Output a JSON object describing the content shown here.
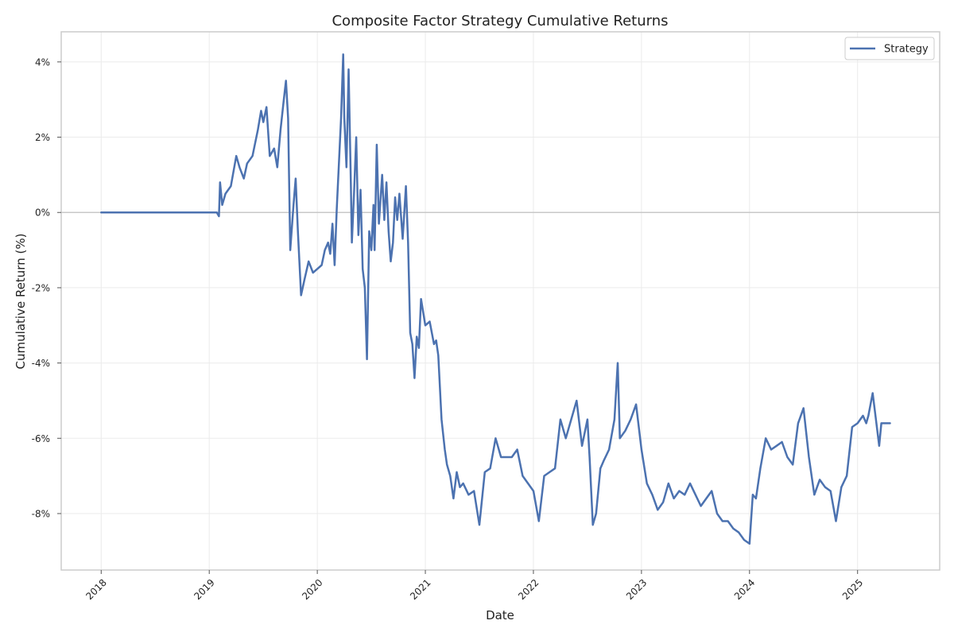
{
  "chart_data": {
    "type": "line",
    "title": "Composite Factor Strategy Cumulative Returns",
    "xlabel": "Date",
    "ylabel": "Cumulative Return (%)",
    "x_ticks": [
      "2018",
      "2019",
      "2020",
      "2021",
      "2022",
      "2023",
      "2024",
      "2025"
    ],
    "y_ticks": [
      "-8%",
      "-6%",
      "-4%",
      "-2%",
      "0%",
      "2%",
      "4%"
    ],
    "xlim": [
      2017.63,
      2025.76
    ],
    "ylim": [
      -9.5,
      4.8
    ],
    "grid": true,
    "legend_position": "top-right",
    "reference_line_y": 0,
    "series": [
      {
        "name": "Strategy",
        "color": "#4c72b0",
        "points": [
          [
            2018.0,
            0.0
          ],
          [
            2018.5,
            0.0
          ],
          [
            2019.0,
            0.0
          ],
          [
            2019.07,
            0.0
          ],
          [
            2019.09,
            -0.1
          ],
          [
            2019.1,
            0.8
          ],
          [
            2019.12,
            0.2
          ],
          [
            2019.15,
            0.5
          ],
          [
            2019.2,
            0.7
          ],
          [
            2019.25,
            1.5
          ],
          [
            2019.28,
            1.2
          ],
          [
            2019.32,
            0.9
          ],
          [
            2019.35,
            1.3
          ],
          [
            2019.4,
            1.5
          ],
          [
            2019.45,
            2.2
          ],
          [
            2019.48,
            2.7
          ],
          [
            2019.5,
            2.4
          ],
          [
            2019.53,
            2.8
          ],
          [
            2019.56,
            1.5
          ],
          [
            2019.6,
            1.7
          ],
          [
            2019.63,
            1.2
          ],
          [
            2019.66,
            2.2
          ],
          [
            2019.69,
            3.0
          ],
          [
            2019.71,
            3.5
          ],
          [
            2019.73,
            2.5
          ],
          [
            2019.75,
            -1.0
          ],
          [
            2019.78,
            0.2
          ],
          [
            2019.8,
            0.9
          ],
          [
            2019.82,
            -0.5
          ],
          [
            2019.85,
            -2.2
          ],
          [
            2019.88,
            -1.8
          ],
          [
            2019.92,
            -1.3
          ],
          [
            2019.96,
            -1.6
          ],
          [
            2020.0,
            -1.5
          ],
          [
            2020.04,
            -1.4
          ],
          [
            2020.07,
            -1.0
          ],
          [
            2020.1,
            -0.8
          ],
          [
            2020.12,
            -1.1
          ],
          [
            2020.14,
            -0.3
          ],
          [
            2020.16,
            -1.4
          ],
          [
            2020.18,
            0.1
          ],
          [
            2020.2,
            1.3
          ],
          [
            2020.22,
            2.5
          ],
          [
            2020.24,
            4.2
          ],
          [
            2020.25,
            2.5
          ],
          [
            2020.27,
            1.2
          ],
          [
            2020.29,
            3.8
          ],
          [
            2020.31,
            0.8
          ],
          [
            2020.32,
            -0.8
          ],
          [
            2020.34,
            0.5
          ],
          [
            2020.36,
            2.0
          ],
          [
            2020.38,
            -0.6
          ],
          [
            2020.4,
            0.6
          ],
          [
            2020.42,
            -1.5
          ],
          [
            2020.44,
            -2.0
          ],
          [
            2020.46,
            -3.9
          ],
          [
            2020.48,
            -0.5
          ],
          [
            2020.5,
            -1.0
          ],
          [
            2020.52,
            0.2
          ],
          [
            2020.53,
            -1.0
          ],
          [
            2020.55,
            1.8
          ],
          [
            2020.57,
            -0.3
          ],
          [
            2020.6,
            1.0
          ],
          [
            2020.62,
            -0.2
          ],
          [
            2020.64,
            0.8
          ],
          [
            2020.66,
            -0.5
          ],
          [
            2020.68,
            -1.3
          ],
          [
            2020.7,
            -0.8
          ],
          [
            2020.72,
            0.4
          ],
          [
            2020.74,
            -0.2
          ],
          [
            2020.76,
            0.5
          ],
          [
            2020.79,
            -0.7
          ],
          [
            2020.82,
            0.7
          ],
          [
            2020.84,
            -0.8
          ],
          [
            2020.86,
            -3.2
          ],
          [
            2020.88,
            -3.5
          ],
          [
            2020.9,
            -4.4
          ],
          [
            2020.92,
            -3.3
          ],
          [
            2020.94,
            -3.6
          ],
          [
            2020.96,
            -2.3
          ],
          [
            2021.0,
            -3.0
          ],
          [
            2021.04,
            -2.9
          ],
          [
            2021.08,
            -3.5
          ],
          [
            2021.1,
            -3.4
          ],
          [
            2021.12,
            -3.8
          ],
          [
            2021.15,
            -5.5
          ],
          [
            2021.18,
            -6.3
          ],
          [
            2021.2,
            -6.7
          ],
          [
            2021.23,
            -7.0
          ],
          [
            2021.26,
            -7.6
          ],
          [
            2021.29,
            -6.9
          ],
          [
            2021.32,
            -7.3
          ],
          [
            2021.35,
            -7.2
          ],
          [
            2021.4,
            -7.5
          ],
          [
            2021.45,
            -7.4
          ],
          [
            2021.5,
            -8.3
          ],
          [
            2021.55,
            -6.9
          ],
          [
            2021.6,
            -6.8
          ],
          [
            2021.65,
            -6.0
          ],
          [
            2021.7,
            -6.5
          ],
          [
            2021.75,
            -6.5
          ],
          [
            2021.8,
            -6.5
          ],
          [
            2021.85,
            -6.3
          ],
          [
            2021.9,
            -7.0
          ],
          [
            2021.95,
            -7.2
          ],
          [
            2022.0,
            -7.4
          ],
          [
            2022.05,
            -8.2
          ],
          [
            2022.1,
            -7.0
          ],
          [
            2022.15,
            -6.9
          ],
          [
            2022.2,
            -6.8
          ],
          [
            2022.25,
            -5.5
          ],
          [
            2022.3,
            -6.0
          ],
          [
            2022.35,
            -5.5
          ],
          [
            2022.4,
            -5.0
          ],
          [
            2022.45,
            -6.2
          ],
          [
            2022.5,
            -5.5
          ],
          [
            2022.52,
            -6.5
          ],
          [
            2022.55,
            -8.3
          ],
          [
            2022.58,
            -8.0
          ],
          [
            2022.62,
            -6.8
          ],
          [
            2022.65,
            -6.6
          ],
          [
            2022.7,
            -6.3
          ],
          [
            2022.75,
            -5.5
          ],
          [
            2022.78,
            -4.0
          ],
          [
            2022.8,
            -6.0
          ],
          [
            2022.85,
            -5.8
          ],
          [
            2022.9,
            -5.5
          ],
          [
            2022.95,
            -5.1
          ],
          [
            2023.0,
            -6.3
          ],
          [
            2023.05,
            -7.2
          ],
          [
            2023.1,
            -7.5
          ],
          [
            2023.15,
            -7.9
          ],
          [
            2023.2,
            -7.7
          ],
          [
            2023.25,
            -7.2
          ],
          [
            2023.3,
            -7.6
          ],
          [
            2023.35,
            -7.4
          ],
          [
            2023.4,
            -7.5
          ],
          [
            2023.45,
            -7.2
          ],
          [
            2023.5,
            -7.5
          ],
          [
            2023.55,
            -7.8
          ],
          [
            2023.6,
            -7.6
          ],
          [
            2023.65,
            -7.4
          ],
          [
            2023.7,
            -8.0
          ],
          [
            2023.75,
            -8.2
          ],
          [
            2023.8,
            -8.2
          ],
          [
            2023.85,
            -8.4
          ],
          [
            2023.9,
            -8.5
          ],
          [
            2023.95,
            -8.7
          ],
          [
            2024.0,
            -8.8
          ],
          [
            2024.03,
            -7.5
          ],
          [
            2024.06,
            -7.6
          ],
          [
            2024.1,
            -6.8
          ],
          [
            2024.15,
            -6.0
          ],
          [
            2024.2,
            -6.3
          ],
          [
            2024.25,
            -6.2
          ],
          [
            2024.3,
            -6.1
          ],
          [
            2024.35,
            -6.5
          ],
          [
            2024.4,
            -6.7
          ],
          [
            2024.45,
            -5.6
          ],
          [
            2024.5,
            -5.2
          ],
          [
            2024.55,
            -6.5
          ],
          [
            2024.6,
            -7.5
          ],
          [
            2024.65,
            -7.1
          ],
          [
            2024.7,
            -7.3
          ],
          [
            2024.75,
            -7.4
          ],
          [
            2024.8,
            -8.2
          ],
          [
            2024.85,
            -7.3
          ],
          [
            2024.9,
            -7.0
          ],
          [
            2024.95,
            -5.7
          ],
          [
            2025.0,
            -5.6
          ],
          [
            2025.05,
            -5.4
          ],
          [
            2025.08,
            -5.6
          ],
          [
            2025.1,
            -5.4
          ],
          [
            2025.14,
            -4.8
          ],
          [
            2025.17,
            -5.5
          ],
          [
            2025.2,
            -6.2
          ],
          [
            2025.22,
            -5.6
          ],
          [
            2025.3,
            -5.6
          ]
        ]
      }
    ]
  }
}
